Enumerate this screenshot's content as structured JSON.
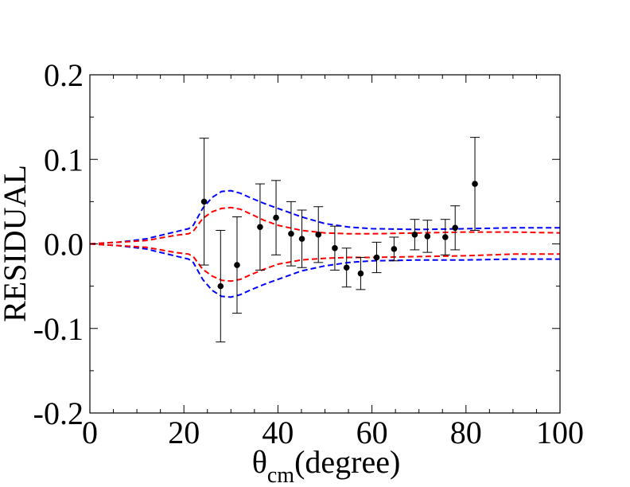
{
  "chart_data": {
    "type": "scatter",
    "title": "",
    "xlabel_main": "θ",
    "xlabel_sub": "cm",
    "xlabel_unit": "(degree)",
    "ylabel": "RESIDUAL",
    "xlim": [
      0,
      100
    ],
    "ylim": [
      -0.2,
      0.2
    ],
    "x_ticks": [
      0,
      20,
      40,
      60,
      80,
      100
    ],
    "x_tick_labels": [
      "0",
      "20",
      "40",
      "60",
      "80",
      "100"
    ],
    "y_ticks": [
      -0.2,
      -0.1,
      0.0,
      0.1,
      0.2
    ],
    "y_tick_labels": [
      "-0.2",
      "-0.1",
      "0.0",
      "0.1",
      "0.2"
    ],
    "grid": false,
    "colors": {
      "data": "#000000",
      "blue_band": "#0000ff",
      "red_band": "#ff0000"
    },
    "series": [
      {
        "name": "data",
        "x": [
          24.3,
          27.8,
          31.3,
          36.2,
          39.6,
          42.8,
          45.1,
          48.6,
          52.1,
          54.6,
          57.6,
          61.0,
          64.7,
          69.1,
          71.8,
          75.6,
          77.7,
          81.9
        ],
        "y": [
          0.05,
          -0.05,
          -0.025,
          0.02,
          0.031,
          0.012,
          0.006,
          0.011,
          -0.005,
          -0.028,
          -0.035,
          -0.016,
          -0.006,
          0.011,
          0.009,
          0.008,
          0.019,
          0.071
        ],
        "yerr": [
          0.075,
          0.066,
          0.057,
          0.051,
          0.044,
          0.038,
          0.034,
          0.033,
          0.026,
          0.023,
          0.019,
          0.018,
          0.014,
          0.018,
          0.019,
          0.021,
          0.026,
          0.055
        ]
      },
      {
        "name": "blue band upper",
        "style": "dashed",
        "x": [
          0,
          3,
          6,
          9,
          12,
          15,
          18,
          21,
          22,
          24,
          26,
          28,
          30,
          32,
          34,
          37,
          40,
          45,
          50,
          55,
          60,
          70,
          80,
          90,
          100
        ],
        "y": [
          0,
          0.001,
          0.002,
          0.004,
          0.006,
          0.01,
          0.014,
          0.018,
          0.022,
          0.042,
          0.055,
          0.062,
          0.063,
          0.06,
          0.055,
          0.048,
          0.042,
          0.032,
          0.024,
          0.02,
          0.018,
          0.017,
          0.018,
          0.019,
          0.019
        ]
      },
      {
        "name": "blue band lower",
        "style": "dashed",
        "x": [
          0,
          3,
          6,
          9,
          12,
          15,
          18,
          21,
          22,
          24,
          26,
          28,
          30,
          32,
          34,
          37,
          40,
          45,
          50,
          55,
          60,
          70,
          80,
          90,
          100
        ],
        "y": [
          0,
          -0.001,
          -0.002,
          -0.004,
          -0.006,
          -0.01,
          -0.014,
          -0.018,
          -0.022,
          -0.042,
          -0.055,
          -0.062,
          -0.063,
          -0.06,
          -0.055,
          -0.048,
          -0.042,
          -0.032,
          -0.026,
          -0.022,
          -0.02,
          -0.019,
          -0.019,
          -0.018,
          -0.018
        ]
      },
      {
        "name": "red band upper",
        "style": "dashed",
        "x": [
          0,
          3,
          6,
          9,
          12,
          15,
          18,
          21,
          22,
          24,
          26,
          28,
          30,
          32,
          34,
          37,
          40,
          45,
          50,
          55,
          60,
          70,
          80,
          90,
          100
        ],
        "y": [
          0,
          0.001,
          0.002,
          0.003,
          0.004,
          0.007,
          0.01,
          0.012,
          0.015,
          0.03,
          0.038,
          0.042,
          0.043,
          0.041,
          0.036,
          0.028,
          0.022,
          0.016,
          0.013,
          0.012,
          0.012,
          0.013,
          0.014,
          0.014,
          0.013
        ]
      },
      {
        "name": "red band lower",
        "style": "dashed",
        "x": [
          0,
          3,
          6,
          9,
          12,
          15,
          18,
          21,
          22,
          24,
          26,
          28,
          30,
          32,
          34,
          37,
          40,
          45,
          50,
          55,
          60,
          70,
          80,
          90,
          100
        ],
        "y": [
          0,
          -0.001,
          -0.002,
          -0.003,
          -0.004,
          -0.007,
          -0.01,
          -0.012,
          -0.015,
          -0.03,
          -0.038,
          -0.043,
          -0.044,
          -0.042,
          -0.037,
          -0.03,
          -0.024,
          -0.019,
          -0.017,
          -0.016,
          -0.016,
          -0.015,
          -0.014,
          -0.012,
          -0.012
        ]
      }
    ]
  }
}
